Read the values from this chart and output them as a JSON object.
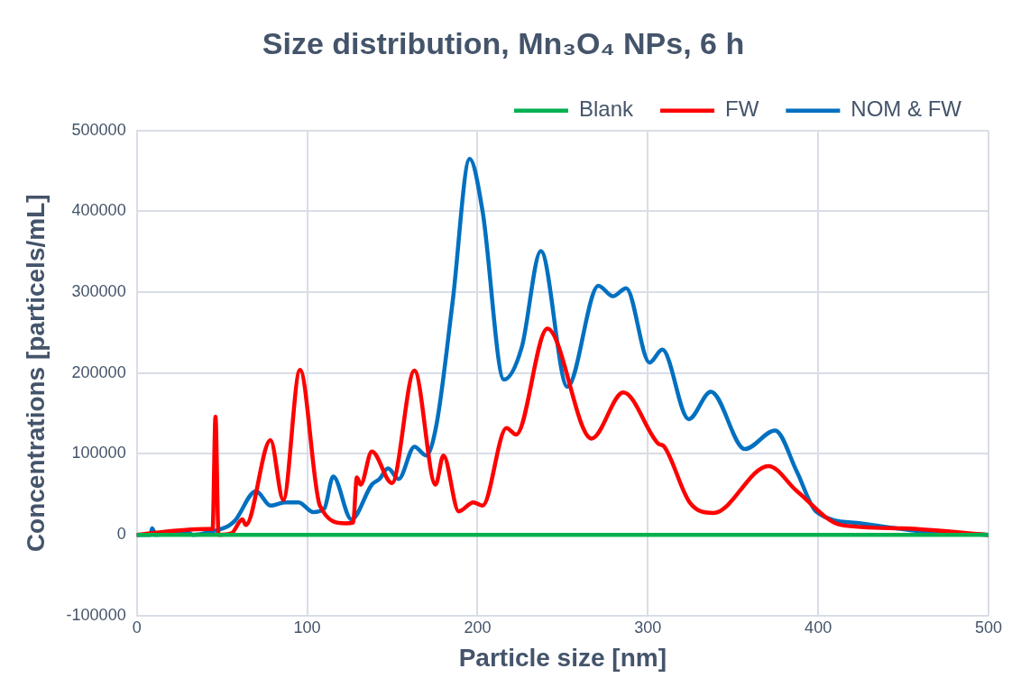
{
  "chart_data": {
    "type": "line",
    "title": "Size distribution, Mn₃O₄ NPs, 6 h",
    "xlabel": "Particle size [nm]",
    "ylabel": "Concentrations [particels/mL]",
    "xlim": [
      0,
      500
    ],
    "xticks": [
      0,
      100,
      200,
      300,
      400,
      500
    ],
    "ylim": [
      -100000,
      500000
    ],
    "yticks": [
      -100000,
      0,
      100000,
      200000,
      300000,
      400000,
      500000
    ],
    "grid": true,
    "legend": "top right",
    "marker": "none",
    "line_style": "solid",
    "series": [
      {
        "name": "Blank",
        "color": "#00b050",
        "x": [
          0,
          500
        ],
        "values": [
          0,
          0
        ]
      },
      {
        "name": "FW",
        "color": "#ff0000",
        "x": [
          0,
          40,
          44.5,
          46.2,
          48,
          55.7,
          62,
          64,
          78.5,
          86,
          95.8,
          107.5,
          122.5,
          127,
          129.2,
          131.4,
          138,
          149.8,
          163,
          175.4,
          180,
          189,
          197.6,
          203,
          217,
          222.7,
          241,
          267,
          285.6,
          306,
          309.6,
          324.6,
          338.5,
          370.8,
          387.5,
          413.7,
          448.8,
          500
        ],
        "values": [
          0,
          7000,
          7000,
          146000,
          0,
          2000,
          19000,
          12000,
          117000,
          43000,
          204000,
          36000,
          14000,
          15000,
          71000,
          62000,
          103000,
          64000,
          203000,
          62000,
          98000,
          29000,
          40000,
          36000,
          132000,
          124000,
          255000,
          119000,
          176000,
          113000,
          109000,
          40000,
          27000,
          85000,
          54000,
          12000,
          8000,
          0
        ]
      },
      {
        "name": "NOM & FW",
        "color": "#0070c0",
        "x": [
          0,
          8,
          9,
          11,
          28.4,
          33,
          42,
          57,
          70,
          78.5,
          86.8,
          95,
          103.6,
          110,
          115.3,
          126,
          138,
          142.5,
          147.5,
          153.7,
          163,
          169.8,
          176,
          185.4,
          195.4,
          203,
          215.5,
          226,
          237.2,
          252.8,
          271,
          279.5,
          287.3,
          301,
          308.5,
          324,
          337,
          357,
          374.7,
          387.5,
          398.7,
          425,
          462,
          500
        ],
        "values": [
          0,
          0,
          8000,
          0,
          5000,
          0,
          3000,
          16000,
          54000,
          36000,
          40000,
          40000,
          28000,
          32000,
          72000,
          19000,
          62000,
          69000,
          82000,
          69000,
          109000,
          98000,
          137000,
          288000,
          465000,
          400000,
          192000,
          232000,
          351000,
          183000,
          308000,
          295000,
          305000,
          213000,
          229000,
          143000,
          177000,
          106000,
          129000,
          78000,
          29000,
          14000,
          4000,
          0
        ]
      }
    ]
  }
}
